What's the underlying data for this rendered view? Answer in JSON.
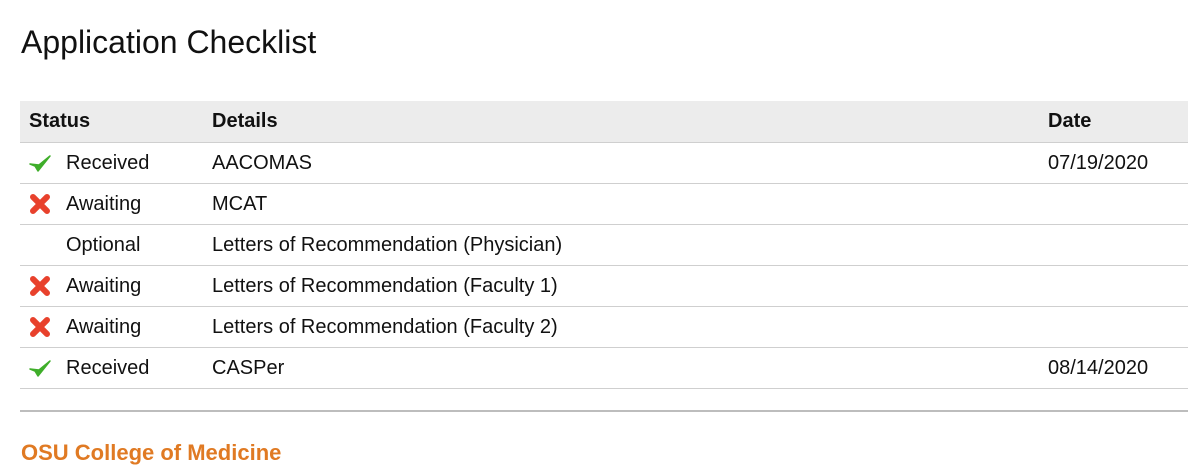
{
  "page": {
    "title": "Application Checklist"
  },
  "table": {
    "headers": {
      "status": "Status",
      "details": "Details",
      "date": "Date"
    },
    "rows": [
      {
        "icon": "check",
        "status": "Received",
        "details": "AACOMAS",
        "date": "07/19/2020"
      },
      {
        "icon": "cross",
        "status": "Awaiting",
        "details": "MCAT",
        "date": ""
      },
      {
        "icon": "none",
        "status": "Optional",
        "details": "Letters of Recommendation (Physician)",
        "date": ""
      },
      {
        "icon": "cross",
        "status": "Awaiting",
        "details": "Letters of Recommendation (Faculty 1)",
        "date": ""
      },
      {
        "icon": "cross",
        "status": "Awaiting",
        "details": "Letters of Recommendation (Faculty 2)",
        "date": ""
      },
      {
        "icon": "check",
        "status": "Received",
        "details": "CASPer",
        "date": "08/14/2020"
      }
    ]
  },
  "footer": {
    "school_name": "OSU College of Medicine"
  },
  "colors": {
    "check": "#3fae2a",
    "cross": "#e8412c",
    "school_name": "#e07a23",
    "header_background": "#ececec"
  }
}
